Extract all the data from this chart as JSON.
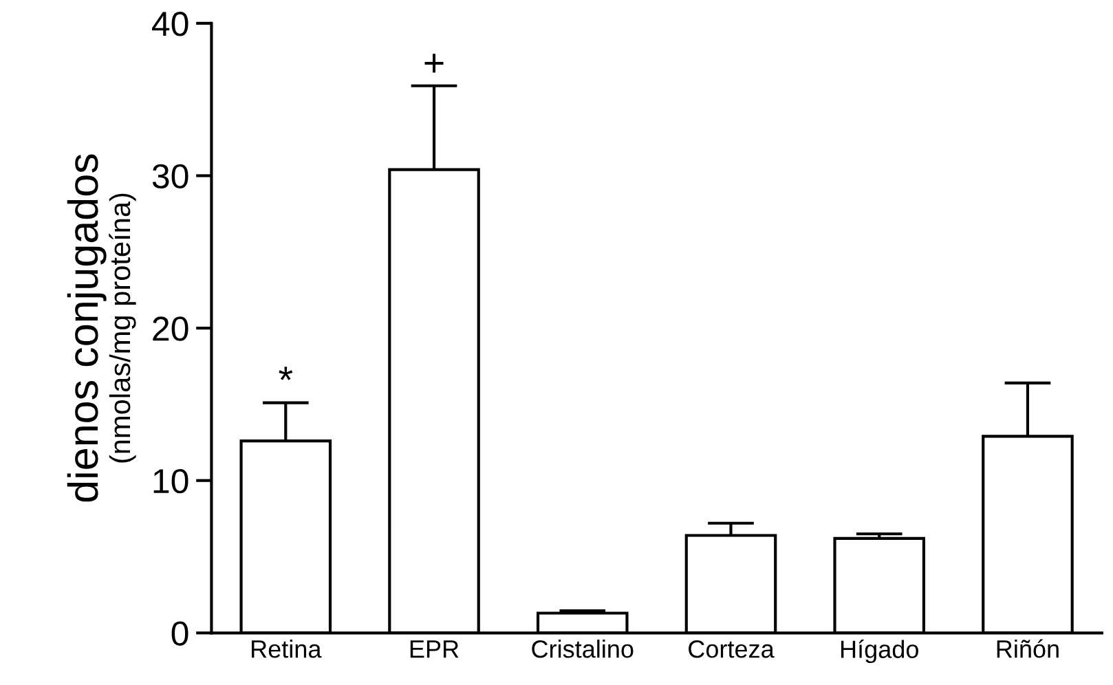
{
  "chart_data": {
    "type": "bar",
    "ylabel": "dienos conjugados\n(nmolas/mg proteína)",
    "categories": [
      "Retina",
      "EPR",
      "Cristalino",
      "Corteza",
      "Hígado",
      "Riñón"
    ],
    "values": [
      12.6,
      30.4,
      1.3,
      6.4,
      6.2,
      12.9
    ],
    "errors": [
      2.5,
      5.5,
      0.15,
      0.8,
      0.3,
      3.5
    ],
    "color": "#ffffff",
    "ylim": [
      0,
      40
    ],
    "yticks": [
      0,
      10,
      20,
      30,
      40
    ],
    "grid": false,
    "annotations": [
      {
        "text": "*",
        "x": "Retina",
        "y": 15.1
      },
      {
        "text": "+",
        "x": "EPR",
        "y": 35.9
      }
    ]
  }
}
